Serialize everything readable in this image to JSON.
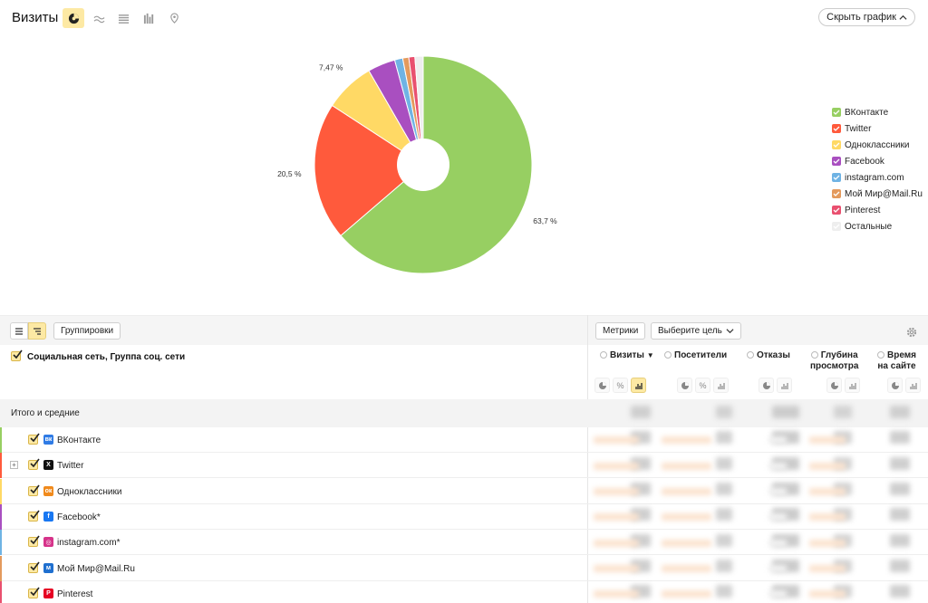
{
  "header": {
    "title": "Визиты",
    "hide_chart_label": "Скрыть график"
  },
  "chart_data": {
    "type": "pie",
    "donut": true,
    "series": [
      {
        "name": "ВКонтакте",
        "value": 63.7,
        "label": "63,7 %",
        "color": "#97cf62"
      },
      {
        "name": "Twitter",
        "value": 20.5,
        "label": "20,5 %",
        "color": "#ff5a3c"
      },
      {
        "name": "Одноклассники",
        "value": 7.47,
        "label": "7,47 %",
        "color": "#ffd965"
      },
      {
        "name": "Facebook",
        "value": 4.1,
        "label": "",
        "color": "#a94fc0"
      },
      {
        "name": "instagram.com",
        "value": 1.2,
        "label": "",
        "color": "#6fb3e4"
      },
      {
        "name": "Мой Мир@Mail.Ru",
        "value": 0.9,
        "label": "",
        "color": "#e49a5d"
      },
      {
        "name": "Pinterest",
        "value": 0.9,
        "label": "",
        "color": "#e9506f"
      },
      {
        "name": "Остальные",
        "value": 1.23,
        "label": "",
        "color": "#eeeeee"
      }
    ],
    "legend": "right"
  },
  "toolbar": {
    "groupings_label": "Группировки",
    "metrics_label": "Метрики",
    "goal_label": "Выберите цель"
  },
  "table": {
    "dimension_title": "Социальная сеть, Группа соц. сети",
    "columns": [
      {
        "line1": "Визиты",
        "line2": "",
        "sorted": "▼"
      },
      {
        "line1": "Посетители",
        "line2": ""
      },
      {
        "line1": "Отказы",
        "line2": ""
      },
      {
        "line1": "Глубина",
        "line2": "просмотра"
      },
      {
        "line1": "Время",
        "line2": "на сайте"
      }
    ],
    "totals_label": "Итого и средние",
    "rows": [
      {
        "label": "ВКонтакте",
        "icon": "vk-icon",
        "badge": "вк",
        "color": "#2f7be5",
        "bar": "#97cf62"
      },
      {
        "label": "Twitter",
        "icon": "x-icon",
        "badge": "X",
        "color": "#111111",
        "bar": "#ff5a3c"
      },
      {
        "label": "Одноклассники",
        "icon": "odnoklassniki-icon",
        "badge": "ок",
        "color": "#f08a1c",
        "bar": "#ffd965"
      },
      {
        "label": "Facebook*",
        "icon": "facebook-icon",
        "badge": "f",
        "color": "#1877f2",
        "bar": "#a94fc0"
      },
      {
        "label": "instagram.com*",
        "icon": "instagram-icon",
        "badge": "◎",
        "color": "#d6338a",
        "bar": "#6fb3e4"
      },
      {
        "label": "Мой Мир@Mail.Ru",
        "icon": "moimir-icon",
        "badge": "м",
        "color": "#1f6fcf",
        "bar": "#e49a5d"
      },
      {
        "label": "Pinterest",
        "icon": "pinterest-icon",
        "badge": "P",
        "color": "#e60023",
        "bar": "#e9506f"
      }
    ],
    "misc": {
      "percent": "%"
    }
  }
}
